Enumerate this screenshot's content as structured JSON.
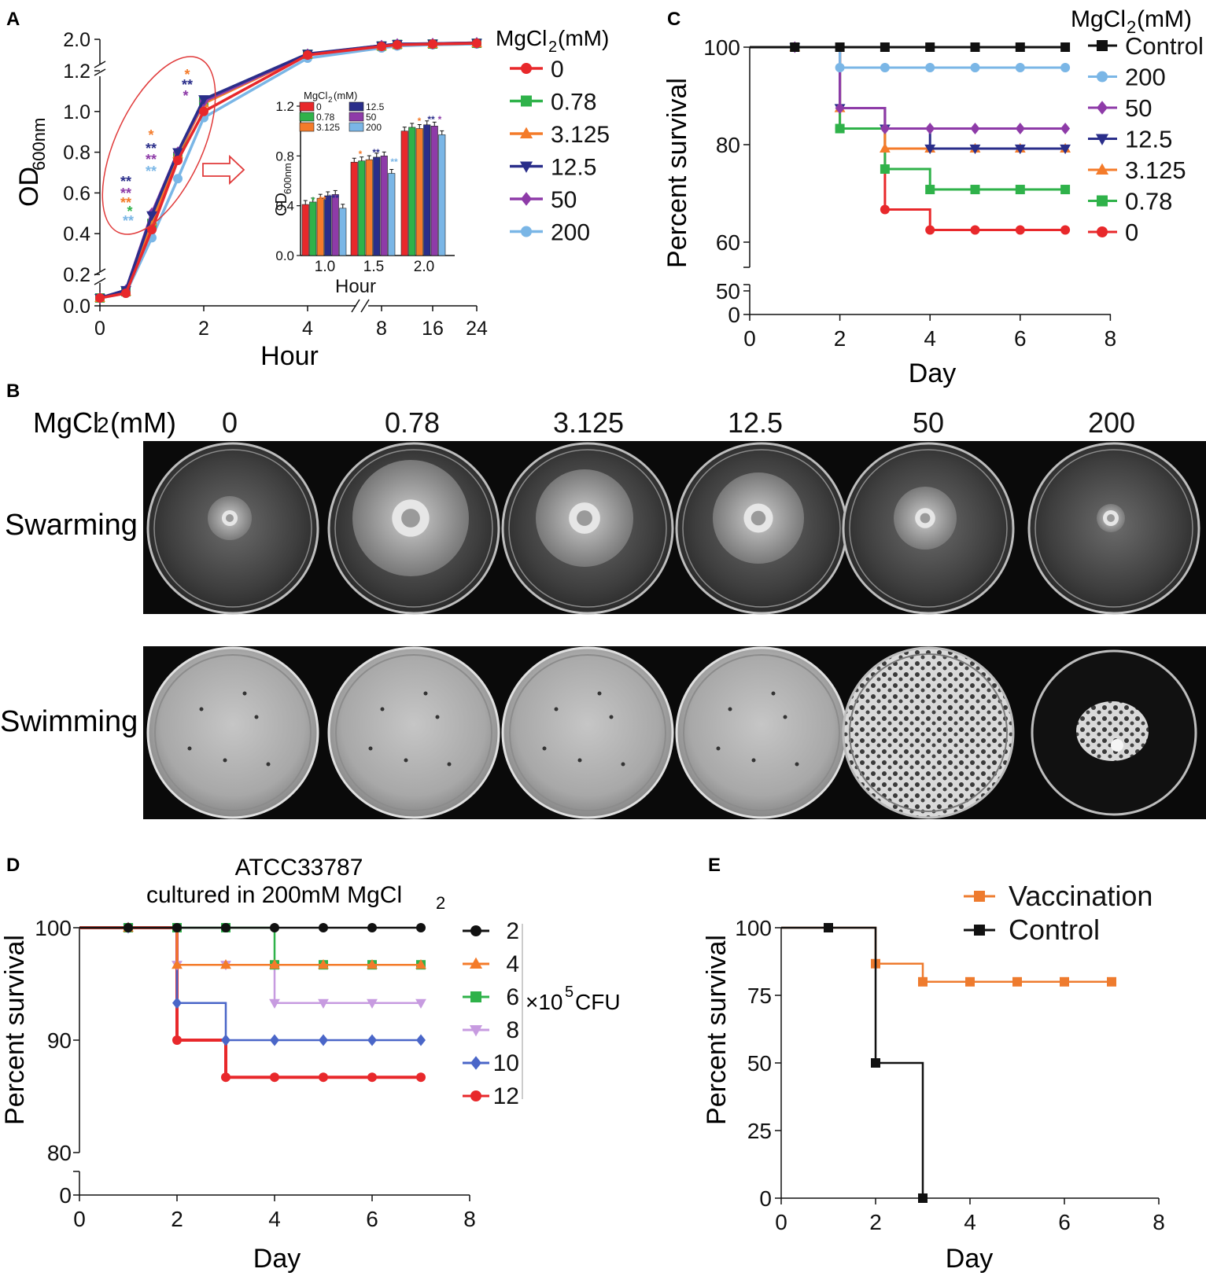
{
  "figure": {
    "panel_labels": [
      "A",
      "B",
      "C",
      "D",
      "E"
    ],
    "colors": {
      "c0": "#e8282b",
      "c078": "#2fb24a",
      "c3125": "#f47b2a",
      "c125": "#2a2e8a",
      "c50": "#8e3ba8",
      "c200": "#7ab6e6",
      "control": "#111111",
      "vacc": "#ee7b2e",
      "ellipse": "#e03a3a"
    }
  },
  "chart_data": [
    {
      "id": "A",
      "type": "line",
      "xlabel": "Hour",
      "ylabel_main": "OD",
      "ylabel_sub": "600nm",
      "x_ticks": [
        "0",
        "2",
        "4",
        "8",
        "16",
        "24"
      ],
      "y_ticks": [
        "0.0",
        "0.2",
        "0.4",
        "0.6",
        "0.8",
        "1.0",
        "1.2",
        "2.0"
      ],
      "legend_title": "MgCl",
      "legend_title_sub": "2",
      "legend_title_unit": "(mM)",
      "legend_position": "right",
      "x": [
        "0",
        "0.5",
        "1",
        "1.5",
        "2",
        "4",
        "8",
        "12",
        "16",
        "24"
      ],
      "series": [
        {
          "name": "0",
          "color_key": "c0",
          "marker": "circle",
          "values": [
            0.05,
            0.08,
            0.42,
            0.76,
            1.0,
            1.6,
            1.82,
            1.86,
            1.88,
            1.9
          ]
        },
        {
          "name": "0.78",
          "color_key": "c078",
          "marker": "square",
          "values": [
            0.05,
            0.09,
            0.45,
            0.78,
            1.05,
            1.62,
            1.83,
            1.87,
            1.88,
            1.9
          ]
        },
        {
          "name": "3.125",
          "color_key": "c3125",
          "marker": "triangle-up",
          "values": [
            0.05,
            0.09,
            0.46,
            0.79,
            1.04,
            1.62,
            1.83,
            1.87,
            1.88,
            1.9
          ]
        },
        {
          "name": "12.5",
          "color_key": "c125",
          "marker": "triangle-down",
          "values": [
            0.05,
            0.1,
            0.49,
            0.8,
            1.06,
            1.63,
            1.84,
            1.88,
            1.89,
            1.91
          ]
        },
        {
          "name": "50",
          "color_key": "c50",
          "marker": "diamond",
          "values": [
            0.05,
            0.1,
            0.5,
            0.8,
            1.05,
            1.62,
            1.84,
            1.88,
            1.89,
            1.91
          ]
        },
        {
          "name": "200",
          "color_key": "c200",
          "marker": "circle",
          "values": [
            0.05,
            0.08,
            0.38,
            0.67,
            0.97,
            1.52,
            1.78,
            1.83,
            1.86,
            1.88
          ]
        }
      ],
      "significance_marks": [
        "**",
        "**",
        "**",
        "*",
        "**",
        "*",
        "**",
        "**",
        "**",
        "*",
        "**",
        "*"
      ],
      "inset": {
        "type": "bar",
        "title": "MgCl",
        "title_sub": "2",
        "title_unit": "(mM)",
        "legend": [
          "0",
          "12.5",
          "0.78",
          "50",
          "3.125",
          "200"
        ],
        "ylabel_main": "OD",
        "ylabel_sub": "600nm",
        "xlabel": "Hour",
        "categories": [
          "1.0",
          "1.5",
          "2.0"
        ],
        "y_ticks": [
          "0.0",
          "0.4",
          "0.8",
          "1.2"
        ],
        "ylim": [
          0,
          1.2
        ],
        "series": [
          {
            "name": "0",
            "color_key": "c0",
            "values": [
              0.41,
              0.75,
              1.0
            ]
          },
          {
            "name": "0.78",
            "color_key": "c078",
            "values": [
              0.43,
              0.76,
              1.03
            ]
          },
          {
            "name": "3.125",
            "color_key": "c3125",
            "values": [
              0.46,
              0.77,
              1.02
            ]
          },
          {
            "name": "12.5",
            "color_key": "c125",
            "values": [
              0.48,
              0.79,
              1.05
            ]
          },
          {
            "name": "50",
            "color_key": "c50",
            "values": [
              0.49,
              0.8,
              1.04
            ]
          },
          {
            "name": "200",
            "color_key": "c200",
            "values": [
              0.38,
              0.66,
              0.97
            ]
          }
        ],
        "marks": [
          "*",
          "**",
          "***",
          "*",
          "**",
          "**",
          "*",
          "**",
          "*"
        ]
      }
    },
    {
      "id": "C",
      "type": "line",
      "xlabel": "Day",
      "ylabel": "Percent survival",
      "x_ticks": [
        "0",
        "2",
        "4",
        "6",
        "8"
      ],
      "y_ticks": [
        "0",
        "50",
        "60",
        "80",
        "100"
      ],
      "legend_title": "MgCl",
      "legend_title_sub": "2",
      "legend_title_unit": "(mM)",
      "legend_position": "right",
      "series": [
        {
          "name": "Control",
          "color_key": "control",
          "marker": "square",
          "x": [
            1,
            2,
            3,
            4,
            5,
            6,
            7
          ],
          "values": [
            100,
            100,
            100,
            100,
            100,
            100,
            100
          ]
        },
        {
          "name": "200",
          "color_key": "c200",
          "marker": "circle",
          "x": [
            1,
            2,
            3,
            4,
            5,
            6,
            7
          ],
          "values": [
            100,
            95.8,
            95.8,
            95.8,
            95.8,
            95.8,
            95.8
          ]
        },
        {
          "name": "50",
          "color_key": "c50",
          "marker": "diamond",
          "x": [
            1,
            2,
            3,
            4,
            5,
            6,
            7
          ],
          "values": [
            100,
            87.5,
            83.3,
            83.3,
            83.3,
            83.3,
            83.3
          ]
        },
        {
          "name": "12.5",
          "color_key": "c125",
          "marker": "triangle-down",
          "x": [
            1,
            2,
            3,
            4,
            5,
            6,
            7
          ],
          "values": [
            100,
            87.5,
            83.3,
            79.2,
            79.2,
            79.2,
            79.2
          ]
        },
        {
          "name": "3.125",
          "color_key": "c3125",
          "marker": "triangle-up",
          "x": [
            1,
            2,
            3,
            4,
            5,
            6,
            7
          ],
          "values": [
            100,
            87.5,
            79.2,
            79.2,
            79.2,
            79.2,
            79.2
          ]
        },
        {
          "name": "0.78",
          "color_key": "c078",
          "marker": "square",
          "x": [
            1,
            2,
            3,
            4,
            5,
            6,
            7
          ],
          "values": [
            100,
            83.3,
            75,
            70.8,
            70.8,
            70.8,
            70.8
          ]
        },
        {
          "name": "0",
          "color_key": "c0",
          "marker": "circle",
          "x": [
            1,
            2,
            3,
            4,
            5,
            6,
            7
          ],
          "values": [
            100,
            83.3,
            66.7,
            62.5,
            62.5,
            62.5,
            62.5
          ]
        }
      ]
    },
    {
      "id": "D",
      "type": "line",
      "title_line1": "ATCC33787",
      "title_line2": "cultured  in 200mM MgCl",
      "title_sub": "2",
      "xlabel": "Day",
      "ylabel": "Percent survival",
      "x_ticks": [
        "0",
        "2",
        "4",
        "6",
        "8"
      ],
      "y_ticks": [
        "0",
        "80",
        "90",
        "100"
      ],
      "unit_label": "×10",
      "unit_sup": "5",
      "unit_suffix": "CFU",
      "legend_position": "right",
      "series": [
        {
          "name": "2",
          "color_key": "control",
          "marker": "circle",
          "x": [
            1,
            2,
            3,
            4,
            5,
            6,
            7
          ],
          "values": [
            100,
            100,
            100,
            100,
            100,
            100,
            100
          ]
        },
        {
          "name": "4",
          "color_key": "c3125",
          "marker": "triangle-up",
          "x": [
            1,
            2,
            3,
            4,
            5,
            6,
            7
          ],
          "values": [
            100,
            96.7,
            96.7,
            96.7,
            96.7,
            96.7,
            96.7
          ]
        },
        {
          "name": "6",
          "color_key": "c078",
          "marker": "square",
          "x": [
            1,
            2,
            3,
            4,
            5,
            6,
            7
          ],
          "values": [
            100,
            100,
            100,
            96.7,
            96.7,
            96.7,
            96.7
          ]
        },
        {
          "name": "8",
          "color_key": "c200v",
          "marker": "triangle-down",
          "x": [
            1,
            2,
            3,
            4,
            5,
            6,
            7
          ],
          "values": [
            100,
            96.7,
            96.7,
            93.3,
            93.3,
            93.3,
            93.3
          ]
        },
        {
          "name": "10",
          "color_key": "c10",
          "marker": "diamond",
          "x": [
            1,
            2,
            3,
            4,
            5,
            6,
            7
          ],
          "values": [
            100,
            93.3,
            90,
            90,
            90,
            90,
            90
          ]
        },
        {
          "name": "12",
          "color_key": "c0",
          "marker": "circle",
          "x": [
            1,
            2,
            3,
            4,
            5,
            6,
            7
          ],
          "values": [
            100,
            90,
            86.7,
            86.7,
            86.7,
            86.7,
            86.7
          ]
        }
      ]
    },
    {
      "id": "E",
      "type": "line",
      "xlabel": "Day",
      "ylabel": "Percent survival",
      "x_ticks": [
        "0",
        "2",
        "4",
        "6",
        "8"
      ],
      "y_ticks": [
        "0",
        "25",
        "50",
        "75",
        "100"
      ],
      "legend_position": "top-right",
      "series": [
        {
          "name": "Vaccination",
          "color_key": "vacc",
          "marker": "square",
          "x": [
            1,
            2,
            3,
            4,
            5,
            6,
            7
          ],
          "values": [
            100,
            86.7,
            80,
            80,
            80,
            80,
            80
          ]
        },
        {
          "name": "Control",
          "color_key": "control",
          "marker": "square",
          "x": [
            1,
            2,
            3
          ],
          "values": [
            100,
            50,
            0
          ]
        }
      ]
    }
  ],
  "panel_b": {
    "header_label": "MgCl",
    "header_sub": "2",
    "header_unit": "(mM)",
    "concentrations": [
      "0",
      "0.78",
      "3.125",
      "12.5",
      "50",
      "200"
    ],
    "rows": [
      "Swarming",
      "Swimming"
    ]
  }
}
